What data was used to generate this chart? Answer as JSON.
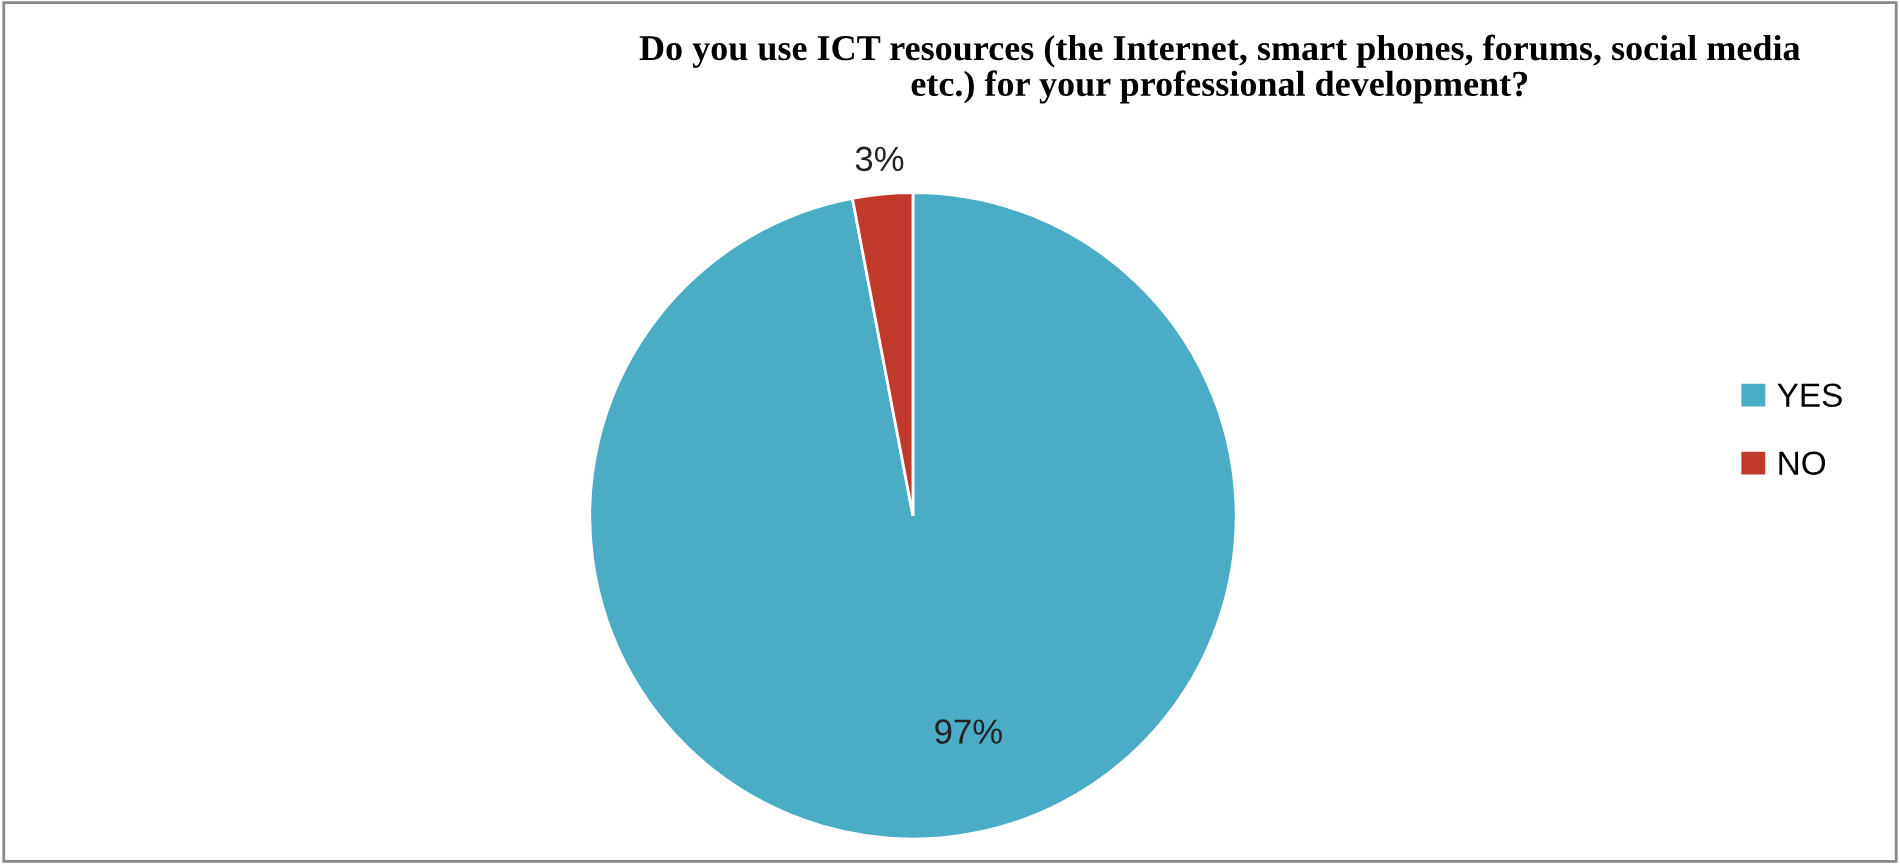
{
  "chart_data": {
    "type": "pie",
    "title": "Do you use ICT resources (the Internet, smart phones, forums, social media etc.) for your professional development?",
    "categories": [
      "YES",
      "NO"
    ],
    "values": [
      97,
      3
    ],
    "colors": [
      "#4bacc6",
      "#c0392b"
    ],
    "value_labels": [
      "97%",
      "3%"
    ],
    "legend": "right"
  }
}
